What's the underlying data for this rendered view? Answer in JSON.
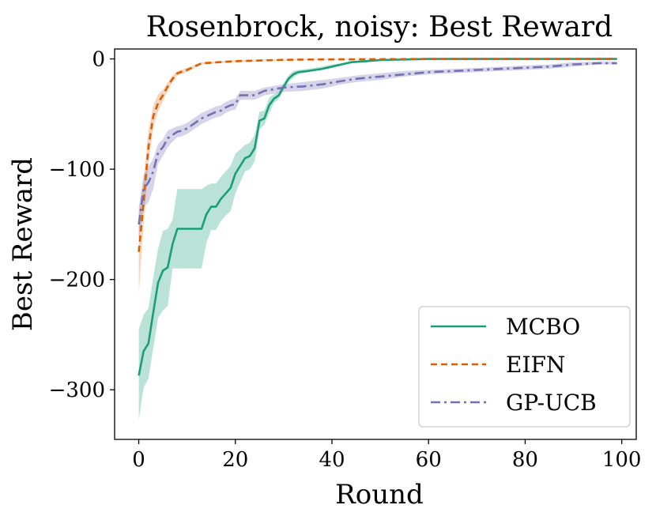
{
  "chart_data": {
    "type": "line",
    "title": "Rosenbrock, noisy: Best Reward",
    "xlabel": "Round",
    "ylabel": "Best Reward",
    "xlim": [
      -5,
      103
    ],
    "ylim": [
      -345,
      9
    ],
    "xticks": [
      0,
      20,
      40,
      60,
      80,
      100
    ],
    "xtick_labels": [
      "0",
      "20",
      "40",
      "60",
      "80",
      "100"
    ],
    "yticks": [
      0,
      -100,
      -200,
      -300
    ],
    "ytick_labels": [
      "0",
      "−100",
      "−200",
      "−300"
    ],
    "grid": false,
    "legend_position": "lower-right",
    "series": [
      {
        "name": "MCBO",
        "color": "#1b9e77",
        "band_color": "#1b9e77",
        "band_opacity": 0.3,
        "dash": "solid",
        "x": [
          0,
          1,
          2,
          3,
          4,
          5,
          6,
          7,
          8,
          10,
          12,
          13,
          14,
          15,
          16,
          17,
          18,
          19,
          20,
          21,
          22,
          23,
          24,
          25,
          26,
          27,
          28,
          29,
          30,
          31,
          32,
          33,
          35,
          38,
          40,
          42,
          44,
          47,
          50,
          55,
          60,
          70,
          80,
          90,
          99
        ],
        "values": [
          -287,
          -265,
          -258,
          -230,
          -203,
          -192,
          -189,
          -168,
          -154,
          -154,
          -154,
          -154,
          -141,
          -134,
          -134,
          -127,
          -122,
          -117,
          -104,
          -97,
          -90,
          -88,
          -81,
          -56,
          -54,
          -42,
          -36,
          -33,
          -25,
          -18,
          -14,
          -12,
          -11,
          -9,
          -7,
          -5,
          -3,
          -2,
          -1,
          -0.5,
          0,
          0,
          0,
          0,
          0
        ],
        "lower": [
          -327,
          -298,
          -290,
          -262,
          -235,
          -228,
          -224,
          -190,
          -190,
          -190,
          -190,
          -190,
          -167,
          -155,
          -155,
          -147,
          -142,
          -138,
          -122,
          -112,
          -102,
          -100,
          -93,
          -64,
          -60,
          -49,
          -40,
          -36,
          -28,
          -21,
          -17,
          -14,
          -12,
          -10,
          -8,
          -6,
          -4,
          -3,
          -2,
          -1,
          -0.5,
          -0.5,
          -0.5,
          -0.5,
          -0.5
        ],
        "upper": [
          -245,
          -232,
          -226,
          -198,
          -172,
          -156,
          -154,
          -146,
          -118,
          -118,
          -118,
          -118,
          -115,
          -113,
          -113,
          -107,
          -102,
          -97,
          -86,
          -82,
          -78,
          -76,
          -69,
          -48,
          -47,
          -35,
          -32,
          -30,
          -22,
          -15,
          -11,
          -10,
          -9,
          -7,
          -5,
          -4,
          -2,
          -1,
          -0.5,
          0,
          0.5,
          0.5,
          0.5,
          0.5,
          0.5
        ]
      },
      {
        "name": "EIFN",
        "color": "#d95f02",
        "band_color": "#d95f02",
        "band_opacity": 0.25,
        "dash": "8,5",
        "x": [
          0,
          1,
          2,
          3,
          4,
          5,
          6,
          7,
          8,
          10,
          13,
          20,
          30,
          35,
          45,
          60,
          80,
          99
        ],
        "values": [
          -175,
          -130,
          -80,
          -52,
          -40,
          -33,
          -25,
          -18,
          -13,
          -10,
          -4,
          -2,
          -0.8,
          -0.5,
          -0.3,
          0,
          0,
          0
        ],
        "lower": [
          -213,
          -150,
          -95,
          -62,
          -48,
          -38,
          -29,
          -21,
          -15,
          -12,
          -5,
          -3,
          -1.5,
          -1,
          -0.5,
          -0.3,
          -0.3,
          -0.3
        ],
        "upper": [
          -140,
          -110,
          -65,
          -42,
          -32,
          -28,
          -21,
          -15,
          -11,
          -8,
          -3,
          -1,
          -0.2,
          0,
          0,
          0.2,
          0.2,
          0.2
        ]
      },
      {
        "name": "GP-UCB",
        "color": "#7570b3",
        "band_color": "#7570b3",
        "band_opacity": 0.3,
        "dash": "12,5,3,5",
        "x": [
          0,
          1,
          2,
          3,
          4,
          5,
          6,
          7,
          8,
          9,
          10,
          11,
          12,
          13,
          14,
          15,
          16,
          17,
          18,
          19,
          20,
          21,
          24,
          26,
          30,
          34,
          38,
          42,
          45,
          50,
          55,
          60,
          65,
          70,
          75,
          80,
          85,
          90,
          95,
          99
        ],
        "values": [
          -150,
          -118,
          -112,
          -102,
          -85,
          -80,
          -72,
          -69,
          -66,
          -65,
          -63,
          -60,
          -57,
          -54,
          -52,
          -50,
          -48,
          -47,
          -44,
          -42,
          -41,
          -33,
          -33,
          -29,
          -26,
          -25,
          -23,
          -20,
          -18,
          -16,
          -14,
          -12,
          -11,
          -10,
          -9,
          -8,
          -7,
          -5,
          -4,
          -4
        ],
        "lower": [
          -165,
          -135,
          -130,
          -118,
          -95,
          -88,
          -80,
          -75,
          -71,
          -70,
          -68,
          -65,
          -62,
          -59,
          -57,
          -55,
          -53,
          -52,
          -49,
          -47,
          -46,
          -37,
          -37,
          -33,
          -30,
          -29,
          -27,
          -23,
          -21,
          -19,
          -16,
          -14,
          -13,
          -12,
          -11,
          -10,
          -9,
          -7,
          -5,
          -5
        ],
        "upper": [
          -135,
          -105,
          -98,
          -90,
          -77,
          -73,
          -65,
          -63,
          -61,
          -60,
          -58,
          -55,
          -52,
          -49,
          -47,
          -45,
          -43,
          -42,
          -39,
          -37,
          -36,
          -29,
          -29,
          -26,
          -23,
          -21,
          -19,
          -17,
          -15,
          -13,
          -11,
          -10,
          -9,
          -8,
          -7,
          -6,
          -5,
          -3,
          -2.5,
          -2.5
        ]
      }
    ]
  }
}
